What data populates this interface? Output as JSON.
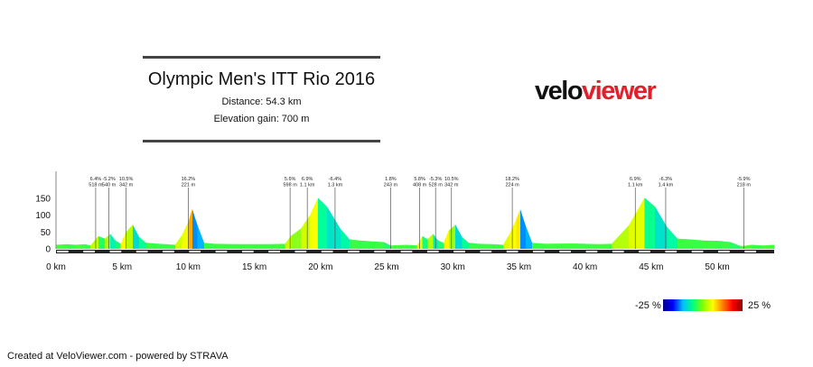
{
  "header": {
    "title": "Olympic Men's ITT Rio 2016",
    "distance": "Distance: 54.3 km",
    "elevation_gain": "Elevation gain: 700 m"
  },
  "logo": {
    "part_a": "velo",
    "part_b": "viewer",
    "color_a": "#111111",
    "color_b": "#e0202a"
  },
  "legend": {
    "min_label": "-25 %",
    "max_label": "25 %"
  },
  "footer": {
    "text": "Created at VeloViewer.com - powered by STRAVA"
  },
  "chart_data": {
    "type": "area",
    "title": "",
    "xlabel": "",
    "ylabel": "",
    "xlim": [
      0,
      54.3
    ],
    "ylim": [
      0,
      150
    ],
    "x_ticks": [
      0,
      5,
      10,
      15,
      20,
      25,
      30,
      35,
      40,
      45,
      50
    ],
    "x_tick_labels": [
      "0 km",
      "5 km",
      "10 km",
      "15 km",
      "20 km",
      "25 km",
      "30 km",
      "35 km",
      "40 km",
      "45 km",
      "50 km"
    ],
    "y_ticks": [
      0,
      50,
      100,
      150
    ],
    "y_tick_labels": [
      "0",
      "50",
      "100",
      "150"
    ],
    "grid": false,
    "color_scale": {
      "min": -25,
      "max": 25,
      "unit": "%"
    },
    "profile": [
      {
        "x": 0.0,
        "y": 12
      },
      {
        "x": 0.8,
        "y": 14
      },
      {
        "x": 1.5,
        "y": 12
      },
      {
        "x": 2.2,
        "y": 14
      },
      {
        "x": 2.6,
        "y": 10
      },
      {
        "x": 3.2,
        "y": 38
      },
      {
        "x": 3.7,
        "y": 30
      },
      {
        "x": 4.1,
        "y": 45
      },
      {
        "x": 4.5,
        "y": 25
      },
      {
        "x": 4.9,
        "y": 15
      },
      {
        "x": 5.3,
        "y": 50
      },
      {
        "x": 5.8,
        "y": 72
      },
      {
        "x": 6.3,
        "y": 35
      },
      {
        "x": 6.8,
        "y": 18
      },
      {
        "x": 7.5,
        "y": 16
      },
      {
        "x": 8.2,
        "y": 14
      },
      {
        "x": 9.0,
        "y": 12
      },
      {
        "x": 9.5,
        "y": 40
      },
      {
        "x": 10.0,
        "y": 80
      },
      {
        "x": 10.3,
        "y": 118
      },
      {
        "x": 10.7,
        "y": 70
      },
      {
        "x": 11.2,
        "y": 18
      },
      {
        "x": 12.0,
        "y": 15
      },
      {
        "x": 14.0,
        "y": 14
      },
      {
        "x": 16.0,
        "y": 14
      },
      {
        "x": 17.3,
        "y": 15
      },
      {
        "x": 17.8,
        "y": 40
      },
      {
        "x": 18.5,
        "y": 60
      },
      {
        "x": 19.2,
        "y": 100
      },
      {
        "x": 19.8,
        "y": 152
      },
      {
        "x": 20.5,
        "y": 125
      },
      {
        "x": 21.5,
        "y": 60
      },
      {
        "x": 22.2,
        "y": 28
      },
      {
        "x": 23.0,
        "y": 25
      },
      {
        "x": 24.0,
        "y": 22
      },
      {
        "x": 24.8,
        "y": 20
      },
      {
        "x": 25.3,
        "y": 10
      },
      {
        "x": 26.5,
        "y": 12
      },
      {
        "x": 27.3,
        "y": 10
      },
      {
        "x": 27.7,
        "y": 38
      },
      {
        "x": 28.1,
        "y": 28
      },
      {
        "x": 28.5,
        "y": 45
      },
      {
        "x": 28.9,
        "y": 25
      },
      {
        "x": 29.3,
        "y": 18
      },
      {
        "x": 29.7,
        "y": 55
      },
      {
        "x": 30.2,
        "y": 72
      },
      {
        "x": 30.7,
        "y": 35
      },
      {
        "x": 31.2,
        "y": 18
      },
      {
        "x": 32.0,
        "y": 15
      },
      {
        "x": 33.0,
        "y": 14
      },
      {
        "x": 33.8,
        "y": 12
      },
      {
        "x": 34.3,
        "y": 45
      },
      {
        "x": 34.8,
        "y": 88
      },
      {
        "x": 35.1,
        "y": 118
      },
      {
        "x": 35.5,
        "y": 70
      },
      {
        "x": 36.0,
        "y": 18
      },
      {
        "x": 37.0,
        "y": 15
      },
      {
        "x": 39.0,
        "y": 16
      },
      {
        "x": 41.0,
        "y": 14
      },
      {
        "x": 42.0,
        "y": 15
      },
      {
        "x": 42.6,
        "y": 40
      },
      {
        "x": 43.3,
        "y": 70
      },
      {
        "x": 43.9,
        "y": 110
      },
      {
        "x": 44.5,
        "y": 152
      },
      {
        "x": 45.3,
        "y": 125
      },
      {
        "x": 46.2,
        "y": 65
      },
      {
        "x": 47.0,
        "y": 30
      },
      {
        "x": 48.0,
        "y": 28
      },
      {
        "x": 49.0,
        "y": 25
      },
      {
        "x": 50.0,
        "y": 24
      },
      {
        "x": 51.0,
        "y": 20
      },
      {
        "x": 51.8,
        "y": 8
      },
      {
        "x": 52.6,
        "y": 12
      },
      {
        "x": 53.4,
        "y": 10
      },
      {
        "x": 54.3,
        "y": 12
      }
    ],
    "climb_annotations": [
      {
        "x": 3.0,
        "grade": "6.4%",
        "value": "518 m"
      },
      {
        "x": 4.0,
        "grade": "-5.2%",
        "value": "540 m"
      },
      {
        "x": 5.3,
        "grade": "10.5%",
        "value": "342 m"
      },
      {
        "x": 10.0,
        "grade": "16.2%",
        "value": "221 m"
      },
      {
        "x": 17.7,
        "grade": "5.6%",
        "value": "598 m"
      },
      {
        "x": 19.0,
        "grade": "6.9%",
        "value": "1.1 km"
      },
      {
        "x": 21.1,
        "grade": "-6.4%",
        "value": "1.3 km"
      },
      {
        "x": 25.3,
        "grade": "1.8%",
        "value": "243 m"
      },
      {
        "x": 27.5,
        "grade": "5.8%",
        "value": "408 m"
      },
      {
        "x": 28.7,
        "grade": "-5.3%",
        "value": "528 m"
      },
      {
        "x": 29.9,
        "grade": "10.5%",
        "value": "342 m"
      },
      {
        "x": 34.5,
        "grade": "18.2%",
        "value": "224 m"
      },
      {
        "x": 43.8,
        "grade": "6.9%",
        "value": "1.1 km"
      },
      {
        "x": 46.1,
        "grade": "-6.3%",
        "value": "1.4 km"
      },
      {
        "x": 52.0,
        "grade": "-5.9%",
        "value": "218 m"
      }
    ]
  }
}
